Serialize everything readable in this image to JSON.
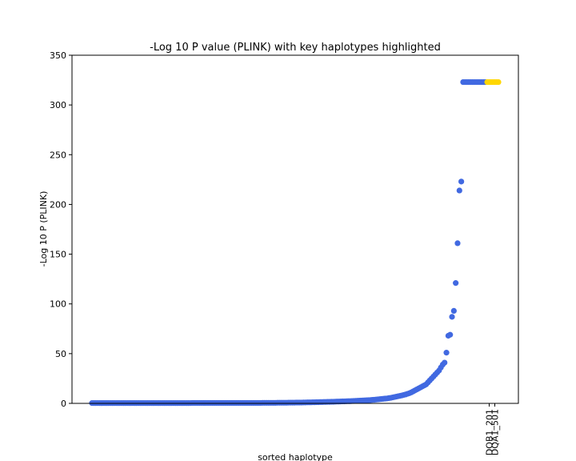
{
  "chart_data": {
    "type": "scatter",
    "title": "-Log 10 P value (PLINK) with key haplotypes highlighted",
    "xlabel": "sorted haplotype",
    "ylabel": "-Log 10 P (PLINK)",
    "ylim": [
      0,
      350
    ],
    "yticks": [
      0,
      50,
      100,
      150,
      200,
      250,
      300,
      350
    ],
    "grid": false,
    "highlight_color": "#ffd700",
    "base_color": "#4169e1",
    "x_tick_labels": [
      "DQB1_201",
      "DQA1_501"
    ],
    "series": [
      {
        "values": [
          0.3,
          0.3,
          0.3,
          0.3,
          0.3,
          0.3,
          0.3,
          0.3,
          0.3,
          0.3,
          0.3,
          0.3,
          0.3,
          0.3,
          0.3,
          0.3,
          0.3,
          0.3,
          0.3,
          0.3,
          0.3,
          0.3,
          0.3,
          0.3,
          0.3,
          0.3,
          0.3,
          0.3,
          0.3,
          0.3,
          0.3,
          0.3,
          0.3,
          0.3,
          0.3,
          0.3,
          0.3,
          0.3,
          0.3,
          0.3,
          0.3,
          0.3,
          0.3,
          0.3,
          0.3,
          0.3,
          0.3,
          0.3,
          0.3,
          0.3,
          0.3,
          0.3,
          0.3,
          0.3,
          0.4,
          0.4,
          0.4,
          0.4,
          0.4,
          0.4,
          0.4,
          0.4,
          0.4,
          0.4,
          0.4,
          0.4,
          0.4,
          0.4,
          0.4,
          0.4,
          0.4,
          0.4,
          0.4,
          0.4,
          0.4,
          0.4,
          0.4,
          0.4,
          0.4,
          0.4,
          0.4,
          0.4,
          0.4,
          0.4,
          0.4,
          0.4,
          0.4,
          0.4,
          0.4,
          0.4,
          0.4,
          0.4,
          0.5,
          0.5,
          0.5,
          0.5,
          0.5,
          0.5,
          0.5,
          0.5,
          0.6,
          0.6,
          0.6,
          0.6,
          0.6,
          0.6,
          0.7,
          0.7,
          0.7,
          0.7,
          0.8,
          0.8,
          0.8,
          0.8,
          0.9,
          0.9,
          1.0,
          1.0,
          1.0,
          1.1,
          1.1,
          1.2,
          1.2,
          1.3,
          1.3,
          1.4,
          1.4,
          1.5,
          1.5,
          1.6,
          1.6,
          1.7,
          1.8,
          1.8,
          1.9,
          2.0,
          2.0,
          2.1,
          2.2,
          2.2,
          2.3,
          2.4,
          2.5,
          2.6,
          2.7,
          2.8,
          2.9,
          3.0,
          3.1,
          3.2,
          3.3,
          3.5,
          3.6,
          3.8,
          4.0,
          4.2,
          4.4,
          4.6,
          4.8,
          5.0,
          5.3,
          5.6,
          6.0,
          6.4,
          6.8,
          7.2,
          7.6,
          8.0,
          8.5,
          9.0,
          9.6,
          10.2,
          11.0,
          12.0,
          13.0,
          14.0,
          15.0,
          16.0,
          17.0,
          18.0,
          19.0,
          21.0,
          23.0,
          25.0,
          27.0,
          29.0,
          31.0,
          33.0,
          36.0,
          39.0,
          41.0,
          51.0,
          68.0,
          69.0,
          87.0,
          93.0,
          121.0,
          161.0,
          214.0,
          223.0,
          323.0,
          323.0,
          323.0,
          323.0,
          323.0,
          323.0,
          323.0,
          323.0,
          323.0,
          323.0,
          323.0,
          323.0,
          323.0,
          323.0,
          323.0,
          323.0,
          323.0,
          323.0,
          323.0,
          323.0
        ],
        "highlighted_indices": [
          213,
          214,
          215,
          216,
          217,
          218,
          219,
          220,
          221,
          222
        ]
      }
    ]
  }
}
